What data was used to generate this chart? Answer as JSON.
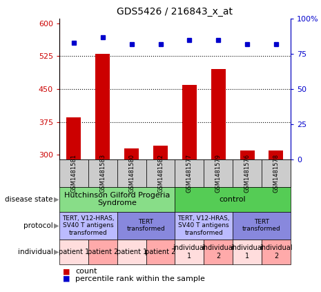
{
  "title": "GDS5426 / 216843_x_at",
  "samples": [
    "GSM1481581",
    "GSM1481583",
    "GSM1481580",
    "GSM1481582",
    "GSM1481577",
    "GSM1481579",
    "GSM1481576",
    "GSM1481578"
  ],
  "counts": [
    385,
    530,
    315,
    320,
    460,
    495,
    310,
    310
  ],
  "percentiles": [
    83,
    87,
    82,
    82,
    85,
    85,
    82,
    82
  ],
  "ylim_left": [
    290,
    610
  ],
  "ylim_right": [
    0,
    100
  ],
  "yticks_left": [
    300,
    375,
    450,
    525,
    600
  ],
  "yticks_right": [
    0,
    25,
    50,
    75,
    100
  ],
  "hlines": [
    375,
    450,
    525
  ],
  "bar_color": "#cc0000",
  "dot_color": "#0000cc",
  "disease_state_groups": [
    {
      "label": "Hutchinson Gilford Progeria\nSyndrome",
      "start": 0,
      "end": 4,
      "color": "#88dd88"
    },
    {
      "label": "control",
      "start": 4,
      "end": 8,
      "color": "#55cc55"
    }
  ],
  "protocol_groups": [
    {
      "label": "TERT, V12-HRAS,\nSV40 T antigens\ntransformed",
      "start": 0,
      "end": 2,
      "color": "#bbbbff"
    },
    {
      "label": "TERT\ntransformed",
      "start": 2,
      "end": 4,
      "color": "#8888dd"
    },
    {
      "label": "TERT, V12-HRAS,\nSV40 T antigens\ntransformed",
      "start": 4,
      "end": 6,
      "color": "#bbbbff"
    },
    {
      "label": "TERT\ntransformed",
      "start": 6,
      "end": 8,
      "color": "#8888dd"
    }
  ],
  "individual_groups": [
    {
      "label": "patient 1",
      "start": 0,
      "end": 1,
      "color": "#ffdddd"
    },
    {
      "label": "patient 2",
      "start": 1,
      "end": 2,
      "color": "#ffaaaa"
    },
    {
      "label": "patient 1",
      "start": 2,
      "end": 3,
      "color": "#ffdddd"
    },
    {
      "label": "patient 2",
      "start": 3,
      "end": 4,
      "color": "#ffaaaa"
    },
    {
      "label": "individual\n1",
      "start": 4,
      "end": 5,
      "color": "#ffdddd"
    },
    {
      "label": "individual\n2",
      "start": 5,
      "end": 6,
      "color": "#ffaaaa"
    },
    {
      "label": "individual\n1",
      "start": 6,
      "end": 7,
      "color": "#ffdddd"
    },
    {
      "label": "individual\n2",
      "start": 7,
      "end": 8,
      "color": "#ffaaaa"
    }
  ],
  "row_labels": [
    "disease state",
    "protocol",
    "individual"
  ],
  "legend_count_label": "count",
  "legend_pct_label": "percentile rank within the sample",
  "bg_color": "#ffffff",
  "sample_bg": "#cccccc"
}
